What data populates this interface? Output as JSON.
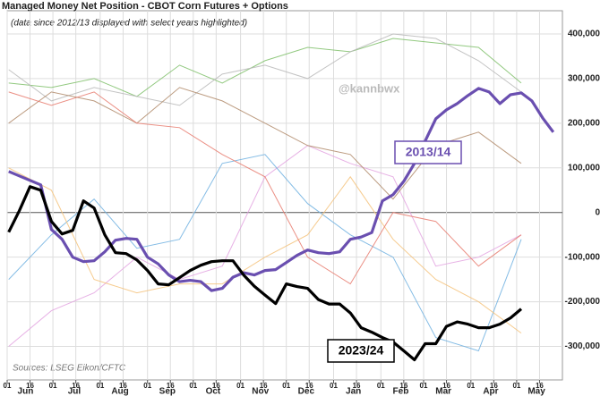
{
  "chart_data": {
    "type": "line",
    "title": "Managed Money Net Position - CBOT Corn Futures + Options",
    "subtitle": "(data since 2012/13 displayed with select years highlighted)",
    "source": "Sources: LSEG Eikon/CFTC",
    "watermark": "@kannbwx",
    "grid": true,
    "xlim": [
      0,
      364
    ],
    "ylim": [
      -375000,
      452000
    ],
    "yticks": [
      {
        "value": 400000,
        "label": "400,000"
      },
      {
        "value": 300000,
        "label": "300,000"
      },
      {
        "value": 200000,
        "label": "200,000"
      },
      {
        "value": 100000,
        "label": "100,000"
      },
      0,
      {
        "value": -100000,
        "label": "-100,000"
      },
      {
        "value": -200000,
        "label": "-200,000"
      },
      {
        "value": -300000,
        "label": "-300,000"
      }
    ],
    "xticks": [
      {
        "value": 0,
        "label": "01"
      },
      {
        "value": 15,
        "label": "16"
      },
      {
        "value": 30,
        "label": "01"
      },
      {
        "value": 45,
        "label": "16"
      },
      {
        "value": 61,
        "label": "01"
      },
      {
        "value": 76,
        "label": "16"
      },
      {
        "value": 92,
        "label": "01"
      },
      {
        "value": 107,
        "label": "16"
      },
      {
        "value": 122,
        "label": "01"
      },
      {
        "value": 137,
        "label": "16"
      },
      {
        "value": 153,
        "label": "01"
      },
      {
        "value": 168,
        "label": "16"
      },
      {
        "value": 183,
        "label": "01"
      },
      {
        "value": 198,
        "label": "16"
      },
      {
        "value": 214,
        "label": "01"
      },
      {
        "value": 229,
        "label": "16"
      },
      {
        "value": 245,
        "label": "01"
      },
      {
        "value": 260,
        "label": "16"
      },
      {
        "value": 273,
        "label": "01"
      },
      {
        "value": 288,
        "label": "16"
      },
      {
        "value": 304,
        "label": "01"
      },
      {
        "value": 319,
        "label": "16"
      },
      {
        "value": 334,
        "label": "01"
      },
      {
        "value": 349,
        "label": "16"
      }
    ],
    "xmonths": [
      {
        "value": 12,
        "label": "Jun"
      },
      {
        "value": 44,
        "label": "Jul"
      },
      {
        "value": 74,
        "label": "Aug"
      },
      {
        "value": 105,
        "label": "Sep"
      },
      {
        "value": 135,
        "label": "Oct"
      },
      {
        "value": 166,
        "label": "Nov"
      },
      {
        "value": 196,
        "label": "Dec"
      },
      {
        "value": 227,
        "label": "Jan"
      },
      {
        "value": 258,
        "label": "Feb"
      },
      {
        "value": 286,
        "label": "Mar"
      },
      {
        "value": 317,
        "label": "Apr"
      },
      {
        "value": 347,
        "label": "May"
      }
    ],
    "x": [
      1,
      8,
      15,
      22,
      29,
      36,
      43,
      50,
      57,
      64,
      71,
      78,
      85,
      92,
      99,
      106,
      113,
      120,
      127,
      134,
      141,
      148,
      155,
      162,
      169,
      176,
      183,
      190,
      197,
      204,
      211,
      218,
      225,
      232,
      239,
      246,
      253,
      260,
      267,
      274,
      281,
      288,
      295,
      302,
      309,
      316,
      323,
      330,
      337,
      344,
      351,
      358
    ],
    "background": [
      {
        "color": "#7fbf6a",
        "x": [
          1,
          29,
          57,
          85,
          113,
          141,
          169,
          197,
          225,
          253,
          281,
          309,
          337
        ],
        "values": [
          290000,
          280000,
          300000,
          260000,
          330000,
          290000,
          340000,
          370000,
          360000,
          390000,
          380000,
          370000,
          290000
        ]
      },
      {
        "color": "#b9b9b9",
        "x": [
          1,
          29,
          57,
          85,
          113,
          141,
          169,
          197,
          225,
          253,
          281,
          309,
          337
        ],
        "values": [
          320000,
          250000,
          280000,
          260000,
          240000,
          310000,
          330000,
          300000,
          360000,
          400000,
          390000,
          340000,
          270000
        ]
      },
      {
        "color": "#e3a3e0",
        "x": [
          1,
          29,
          57,
          85,
          113,
          141,
          169,
          197,
          225,
          253,
          281,
          309,
          337
        ],
        "values": [
          -300000,
          -220000,
          -180000,
          -100000,
          -150000,
          -120000,
          80000,
          150000,
          110000,
          80000,
          -120000,
          -100000,
          -50000
        ]
      },
      {
        "color": "#6fb0e0",
        "x": [
          1,
          29,
          57,
          85,
          113,
          141,
          169,
          197,
          225,
          253,
          281,
          309,
          337
        ],
        "values": [
          -150000,
          -50000,
          30000,
          -80000,
          -60000,
          110000,
          130000,
          20000,
          -50000,
          -100000,
          -280000,
          -310000,
          -60000
        ]
      },
      {
        "color": "#f4c27a",
        "x": [
          1,
          29,
          57,
          85,
          113,
          141,
          169,
          197,
          225,
          253,
          281,
          309,
          337
        ],
        "values": [
          100000,
          50000,
          -150000,
          -180000,
          -160000,
          -160000,
          -100000,
          -50000,
          80000,
          -60000,
          -150000,
          -200000,
          -270000
        ]
      },
      {
        "color": "#b08a6a",
        "x": [
          1,
          29,
          57,
          85,
          113,
          141,
          169,
          197,
          225,
          253,
          281,
          309,
          337
        ],
        "values": [
          200000,
          270000,
          250000,
          200000,
          280000,
          250000,
          200000,
          150000,
          130000,
          30000,
          150000,
          180000,
          110000
        ]
      },
      {
        "color": "#e77b6f",
        "x": [
          1,
          29,
          57,
          85,
          113,
          141,
          169,
          197,
          225,
          253,
          281,
          309,
          337
        ],
        "values": [
          270000,
          240000,
          270000,
          200000,
          190000,
          130000,
          80000,
          -100000,
          -160000,
          0,
          -20000,
          -120000,
          -50000
        ]
      }
    ],
    "series": [
      {
        "name": "2013/14",
        "color": "#6a4fb0",
        "values": [
          92000,
          82000,
          72000,
          62000,
          -38000,
          -60000,
          -100000,
          -110000,
          -108000,
          -88000,
          -62000,
          -58000,
          -60000,
          -100000,
          -115000,
          -140000,
          -155000,
          -152000,
          -155000,
          -175000,
          -170000,
          -145000,
          -135000,
          -140000,
          -130000,
          -128000,
          -112000,
          -96000,
          -84000,
          -90000,
          -92000,
          -88000,
          -60000,
          -55000,
          -45000,
          26000,
          40000,
          70000,
          110000,
          160000,
          210000,
          230000,
          244000,
          262000,
          278000,
          270000,
          244000,
          264000,
          268000,
          250000,
          212000,
          180000
        ]
      },
      {
        "name": "2023/24",
        "color": "#000000",
        "values": [
          -44000,
          4000,
          58000,
          50000,
          -20000,
          -48000,
          -40000,
          26000,
          10000,
          -50000,
          -90000,
          -92000,
          -106000,
          -130000,
          -160000,
          -162000,
          -146000,
          -130000,
          -118000,
          -110000,
          -108000,
          -108000,
          -140000,
          -165000,
          -185000,
          -204000,
          -160000,
          -166000,
          -170000,
          -195000,
          -205000,
          -205000,
          -225000,
          -258000,
          -268000,
          -280000,
          -290000,
          -310000,
          -330000,
          -294000,
          -294000,
          -255000,
          -245000,
          -250000,
          -258000,
          -258000,
          -250000,
          -236000,
          -216000,
          null,
          null,
          null
        ]
      }
    ]
  }
}
